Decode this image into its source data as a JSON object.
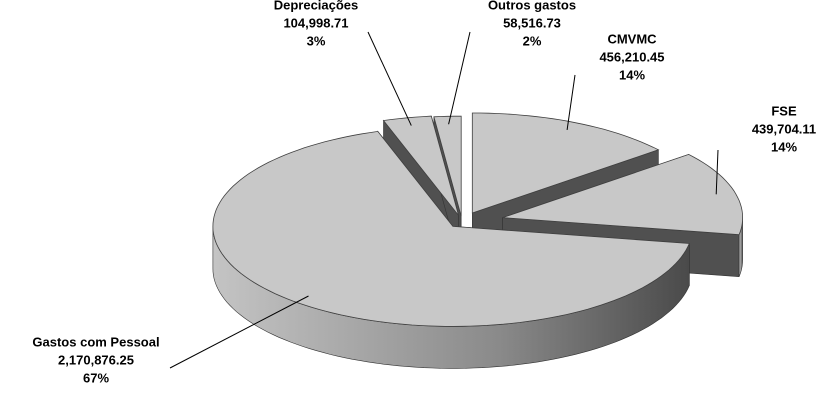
{
  "chart_data": {
    "type": "pie",
    "categories": [
      "CMVMC",
      "FSE",
      "Gastos com Pessoal",
      "Depreciações",
      "Outros gastos"
    ],
    "values": [
      456210.45,
      439704.11,
      2170876.25,
      104998.71,
      58516.73
    ],
    "value_labels": [
      "456,210.45",
      "439,704.11",
      "2,170,876.25",
      "104,998.71",
      "58,516.73"
    ],
    "percent_labels": [
      "14%",
      "14%",
      "67%",
      "3%",
      "2%"
    ],
    "color": "#c8c8c8"
  }
}
